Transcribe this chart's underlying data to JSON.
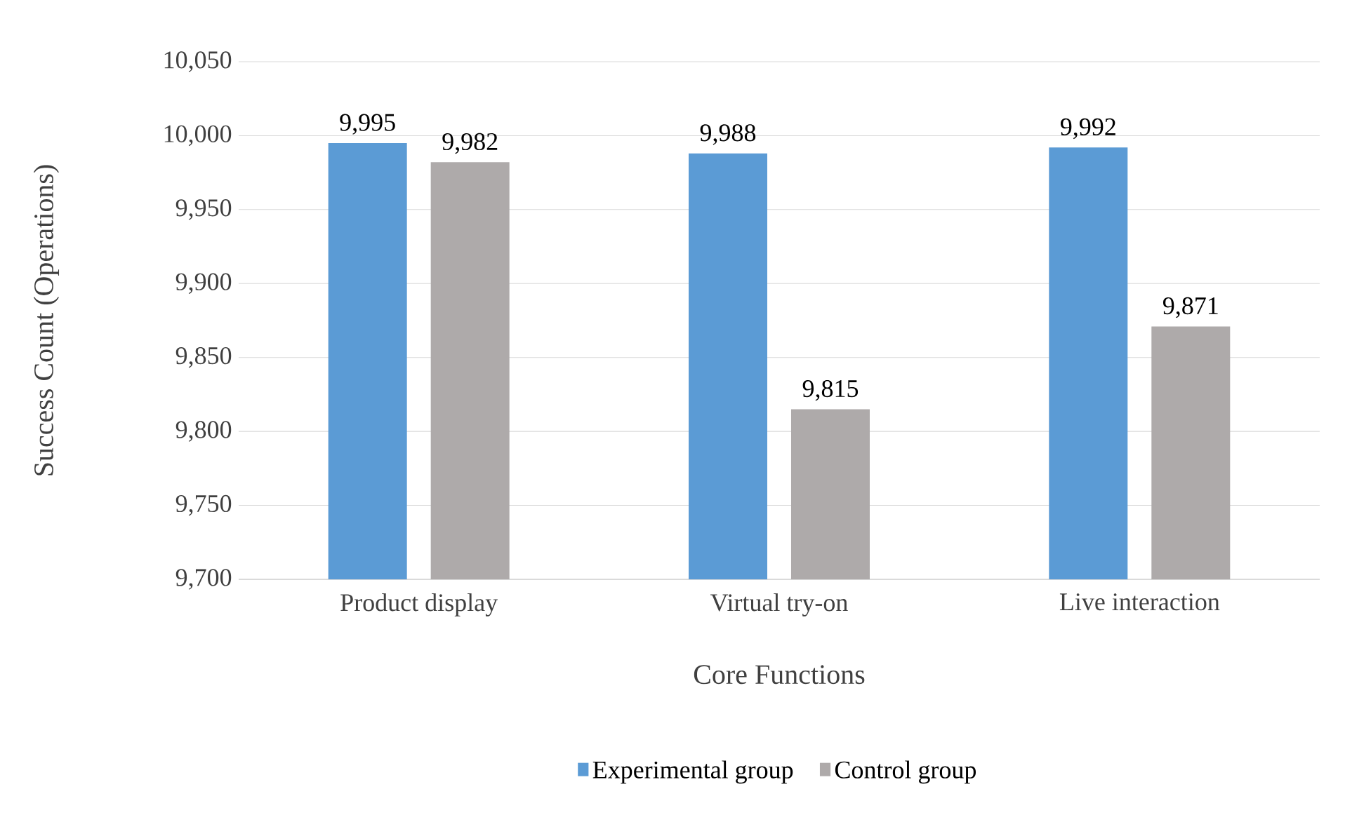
{
  "chart_data": {
    "type": "bar",
    "xlabel": "Core Functions",
    "ylabel": "Success Count (Operations)",
    "categories": [
      "Product display",
      "Virtual try-on",
      "Live interaction"
    ],
    "series": [
      {
        "name": "Experimental group",
        "color": "#5b9bd5",
        "values": [
          9995,
          9988,
          9992
        ],
        "value_labels": [
          "9,995",
          "9,988",
          "9,992"
        ]
      },
      {
        "name": "Control group",
        "color": "#aeaaaa",
        "values": [
          9982,
          9815,
          9871
        ],
        "value_labels": [
          "9,982",
          "9,815",
          "9,871"
        ]
      }
    ],
    "ylim": [
      9700,
      10050
    ],
    "yticks": [
      {
        "value": 9700,
        "label": "9,700"
      },
      {
        "value": 9750,
        "label": "9,750"
      },
      {
        "value": 9800,
        "label": "9,800"
      },
      {
        "value": 9850,
        "label": "9,850"
      },
      {
        "value": 9900,
        "label": "9,900"
      },
      {
        "value": 9950,
        "label": "9,950"
      },
      {
        "value": 10000,
        "label": "10,000"
      },
      {
        "value": 10050,
        "label": "10,050"
      }
    ],
    "grid": "y",
    "legend": "bottom"
  }
}
